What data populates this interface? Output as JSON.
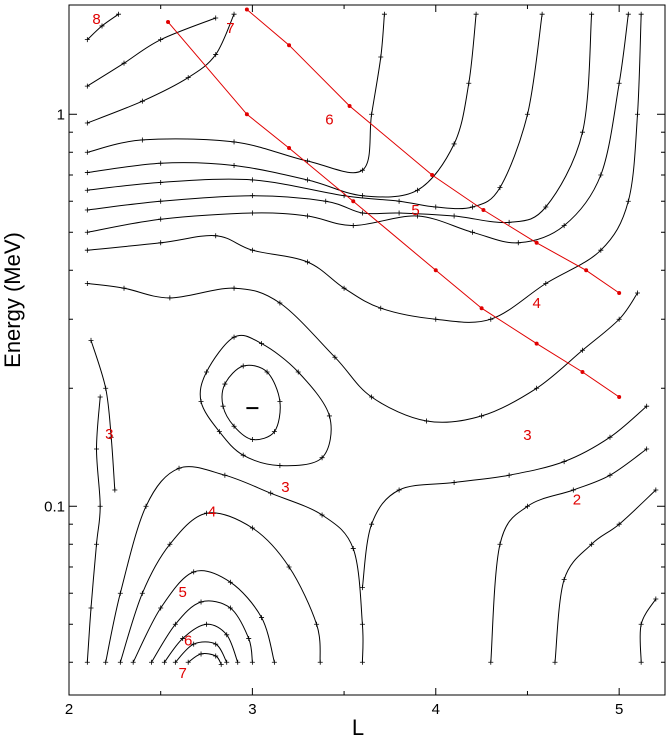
{
  "chart_data": {
    "type": "contour",
    "title": "",
    "xlabel": "L",
    "ylabel": "Energy (MeV)",
    "xlim": [
      2.0,
      5.25
    ],
    "ylim": [
      0.033,
      1.9
    ],
    "ylog": true,
    "x_ticks": [
      2,
      3,
      4,
      5
    ],
    "x_tick_labels": [
      "2",
      "3",
      "4",
      "5"
    ],
    "y_ticks": [
      0.1,
      1
    ],
    "y_tick_labels": [
      "0.1",
      "1"
    ],
    "grid": false,
    "contours": [
      {
        "label": "8",
        "points": [
          [
            2.1,
            1.55
          ],
          [
            2.18,
            1.68
          ],
          [
            2.27,
            1.8
          ]
        ]
      },
      {
        "label": "7",
        "points": [
          [
            2.1,
            1.18
          ],
          [
            2.3,
            1.35
          ],
          [
            2.5,
            1.55
          ],
          [
            2.8,
            1.76
          ]
        ]
      },
      {
        "label": "",
        "points": [
          [
            2.1,
            0.95
          ],
          [
            2.4,
            1.08
          ],
          [
            2.65,
            1.24
          ],
          [
            2.8,
            1.42
          ],
          [
            2.9,
            1.8
          ]
        ]
      },
      {
        "label": "",
        "points": [
          [
            2.1,
            0.8
          ],
          [
            2.4,
            0.86
          ],
          [
            2.9,
            0.85
          ],
          [
            3.3,
            0.76
          ],
          [
            3.6,
            0.72
          ],
          [
            3.65,
            1.0
          ],
          [
            3.7,
            1.4
          ],
          [
            3.72,
            1.8
          ]
        ]
      },
      {
        "label": "",
        "points": [
          [
            2.1,
            0.71
          ],
          [
            2.5,
            0.75
          ],
          [
            2.9,
            0.74
          ],
          [
            3.3,
            0.68
          ],
          [
            3.6,
            0.62
          ],
          [
            3.9,
            0.64
          ],
          [
            4.1,
            0.84
          ],
          [
            4.18,
            1.2
          ],
          [
            4.22,
            1.8
          ]
        ]
      },
      {
        "label": "",
        "points": [
          [
            2.1,
            0.64
          ],
          [
            2.5,
            0.67
          ],
          [
            3.0,
            0.68
          ],
          [
            3.5,
            0.62
          ],
          [
            3.8,
            0.6
          ],
          [
            4.0,
            0.58
          ],
          [
            4.2,
            0.58
          ],
          [
            4.35,
            0.65
          ],
          [
            4.5,
            1.0
          ],
          [
            4.58,
            1.8
          ]
        ]
      },
      {
        "label": "",
        "points": [
          [
            2.1,
            0.57
          ],
          [
            2.5,
            0.6
          ],
          [
            3.0,
            0.62
          ],
          [
            3.4,
            0.6
          ],
          [
            3.6,
            0.56
          ],
          [
            3.8,
            0.56
          ],
          [
            4.1,
            0.55
          ],
          [
            4.4,
            0.53
          ],
          [
            4.6,
            0.58
          ],
          [
            4.8,
            0.9
          ],
          [
            4.85,
            1.8
          ]
        ]
      },
      {
        "label": "5",
        "points": [
          [
            2.1,
            0.5
          ],
          [
            2.5,
            0.54
          ],
          [
            3.0,
            0.56
          ],
          [
            3.3,
            0.55
          ],
          [
            3.55,
            0.52
          ],
          [
            3.9,
            0.55
          ],
          [
            4.2,
            0.5
          ],
          [
            4.45,
            0.47
          ],
          [
            4.7,
            0.52
          ],
          [
            4.9,
            0.7
          ],
          [
            5.0,
            1.2
          ],
          [
            5.05,
            1.8
          ]
        ]
      },
      {
        "label": "4",
        "points": [
          [
            2.1,
            0.45
          ],
          [
            2.5,
            0.47
          ],
          [
            2.8,
            0.49
          ],
          [
            3.0,
            0.45
          ],
          [
            3.3,
            0.42
          ],
          [
            3.5,
            0.36
          ],
          [
            3.7,
            0.32
          ],
          [
            4.0,
            0.3
          ],
          [
            4.3,
            0.3
          ],
          [
            4.6,
            0.37
          ],
          [
            4.9,
            0.45
          ],
          [
            5.05,
            0.6
          ],
          [
            5.1,
            1.0
          ],
          [
            5.12,
            1.8
          ]
        ]
      },
      {
        "label": "3",
        "points": [
          [
            2.1,
            0.37
          ],
          [
            2.3,
            0.36
          ],
          [
            2.55,
            0.34
          ],
          [
            2.9,
            0.36
          ],
          [
            3.15,
            0.33
          ],
          [
            3.45,
            0.24
          ],
          [
            3.65,
            0.19
          ],
          [
            3.95,
            0.165
          ],
          [
            4.25,
            0.17
          ],
          [
            4.55,
            0.2
          ],
          [
            4.8,
            0.25
          ],
          [
            5.0,
            0.3
          ],
          [
            5.1,
            0.35
          ]
        ]
      },
      {
        "label": "2",
        "points": [
          [
            3.6,
            0.062
          ],
          [
            3.65,
            0.09
          ],
          [
            3.8,
            0.11
          ],
          [
            4.1,
            0.115
          ],
          [
            4.4,
            0.12
          ],
          [
            4.7,
            0.13
          ],
          [
            4.95,
            0.15
          ],
          [
            5.15,
            0.18
          ]
        ]
      },
      {
        "label": "",
        "points": [
          [
            4.3,
            0.04
          ],
          [
            4.35,
            0.08
          ],
          [
            4.5,
            0.1
          ],
          [
            4.75,
            0.11
          ],
          [
            4.95,
            0.12
          ],
          [
            5.15,
            0.14
          ]
        ]
      },
      {
        "label": "",
        "points": [
          [
            4.65,
            0.04
          ],
          [
            4.7,
            0.065
          ],
          [
            4.85,
            0.08
          ],
          [
            5.0,
            0.09
          ],
          [
            5.2,
            0.11
          ]
        ]
      },
      {
        "label": "",
        "points": [
          [
            5.12,
            0.04
          ],
          [
            5.12,
            0.05
          ],
          [
            5.2,
            0.058
          ]
        ]
      },
      {
        "label": "",
        "points": [
          [
            2.12,
            0.265
          ],
          [
            2.2,
            0.2
          ],
          [
            2.23,
            0.15
          ],
          [
            2.25,
            0.11
          ]
        ]
      },
      {
        "label": "3",
        "points": [
          [
            2.1,
            0.04
          ],
          [
            2.12,
            0.055
          ],
          [
            2.15,
            0.08
          ],
          [
            2.17,
            0.1
          ],
          [
            2.15,
            0.14
          ],
          [
            2.17,
            0.19
          ]
        ]
      },
      {
        "label": "",
        "points": [
          [
            2.2,
            0.04
          ],
          [
            2.28,
            0.06
          ],
          [
            2.42,
            0.1
          ],
          [
            2.6,
            0.125
          ],
          [
            2.85,
            0.12
          ],
          [
            3.1,
            0.108
          ],
          [
            3.38,
            0.095
          ],
          [
            3.55,
            0.078
          ],
          [
            3.6,
            0.05
          ],
          [
            3.6,
            0.04
          ]
        ]
      },
      {
        "label": "4",
        "points": [
          [
            2.28,
            0.04
          ],
          [
            2.4,
            0.06
          ],
          [
            2.55,
            0.08
          ],
          [
            2.75,
            0.096
          ],
          [
            3.0,
            0.088
          ],
          [
            3.2,
            0.07
          ],
          [
            3.35,
            0.05
          ],
          [
            3.37,
            0.04
          ]
        ]
      },
      {
        "label": "",
        "points": [
          [
            2.35,
            0.04
          ],
          [
            2.5,
            0.055
          ],
          [
            2.68,
            0.068
          ],
          [
            2.88,
            0.064
          ],
          [
            3.05,
            0.052
          ],
          [
            3.12,
            0.04
          ]
        ]
      },
      {
        "label": "5",
        "points": [
          [
            2.45,
            0.04
          ],
          [
            2.58,
            0.05
          ],
          [
            2.72,
            0.057
          ],
          [
            2.88,
            0.055
          ],
          [
            2.98,
            0.046
          ],
          [
            3.0,
            0.04
          ]
        ]
      },
      {
        "label": "",
        "points": [
          [
            2.52,
            0.04
          ],
          [
            2.62,
            0.046
          ],
          [
            2.75,
            0.05
          ],
          [
            2.86,
            0.047
          ],
          [
            2.92,
            0.04
          ]
        ]
      },
      {
        "label": "6",
        "points": [
          [
            2.58,
            0.04
          ],
          [
            2.68,
            0.0445
          ],
          [
            2.8,
            0.0445
          ],
          [
            2.86,
            0.04
          ]
        ]
      },
      {
        "label": "7",
        "points": [
          [
            2.65,
            0.04
          ],
          [
            2.72,
            0.042
          ],
          [
            2.8,
            0.0415
          ],
          [
            2.83,
            0.0395
          ]
        ]
      }
    ],
    "closed_contours": [
      {
        "label": "3",
        "points": [
          [
            2.75,
            0.22
          ],
          [
            2.9,
            0.27
          ],
          [
            3.05,
            0.26
          ],
          [
            3.25,
            0.22
          ],
          [
            3.42,
            0.17
          ],
          [
            3.38,
            0.133
          ],
          [
            3.15,
            0.127
          ],
          [
            2.95,
            0.135
          ],
          [
            2.82,
            0.155
          ],
          [
            2.72,
            0.185
          ]
        ]
      },
      {
        "label": "",
        "points": [
          [
            2.85,
            0.205
          ],
          [
            2.95,
            0.228
          ],
          [
            3.08,
            0.22
          ],
          [
            3.15,
            0.185
          ],
          [
            3.12,
            0.155
          ],
          [
            3.0,
            0.148
          ],
          [
            2.9,
            0.16
          ],
          [
            2.84,
            0.18
          ]
        ]
      }
    ],
    "red_lines": [
      {
        "label": "7",
        "points": [
          [
            2.54,
            1.72
          ],
          [
            2.97,
            1.0
          ],
          [
            3.2,
            0.82
          ],
          [
            3.55,
            0.6
          ],
          [
            4.0,
            0.4
          ],
          [
            4.25,
            0.32
          ],
          [
            4.55,
            0.26
          ],
          [
            4.8,
            0.22
          ],
          [
            5.0,
            0.19
          ]
        ]
      },
      {
        "label": "6",
        "points": [
          [
            2.97,
            1.85
          ],
          [
            3.2,
            1.5
          ],
          [
            3.53,
            1.05
          ],
          [
            3.98,
            0.7
          ],
          [
            4.26,
            0.57
          ],
          [
            4.55,
            0.47
          ],
          [
            4.82,
            0.4
          ],
          [
            5.0,
            0.35
          ]
        ]
      }
    ],
    "labels": [
      {
        "text": "8",
        "x": 2.15,
        "y": 1.75
      },
      {
        "text": "7",
        "x": 2.88,
        "y": 1.66
      },
      {
        "text": "6",
        "x": 3.42,
        "y": 0.97
      },
      {
        "text": "5",
        "x": 3.89,
        "y": 0.57
      },
      {
        "text": "4",
        "x": 4.55,
        "y": 0.33
      },
      {
        "text": "3",
        "x": 4.5,
        "y": 0.152
      },
      {
        "text": "3",
        "x": 3.18,
        "y": 0.112
      },
      {
        "text": "3",
        "x": 2.22,
        "y": 0.153
      },
      {
        "text": "2",
        "x": 4.77,
        "y": 0.104
      },
      {
        "text": "4",
        "x": 2.78,
        "y": 0.097
      },
      {
        "text": "5",
        "x": 2.62,
        "y": 0.0605
      },
      {
        "text": "6",
        "x": 2.65,
        "y": 0.0455
      },
      {
        "text": "7",
        "x": 2.62,
        "y": 0.0375
      }
    ],
    "min_marker": {
      "x": 3.0,
      "y": 0.178
    }
  }
}
